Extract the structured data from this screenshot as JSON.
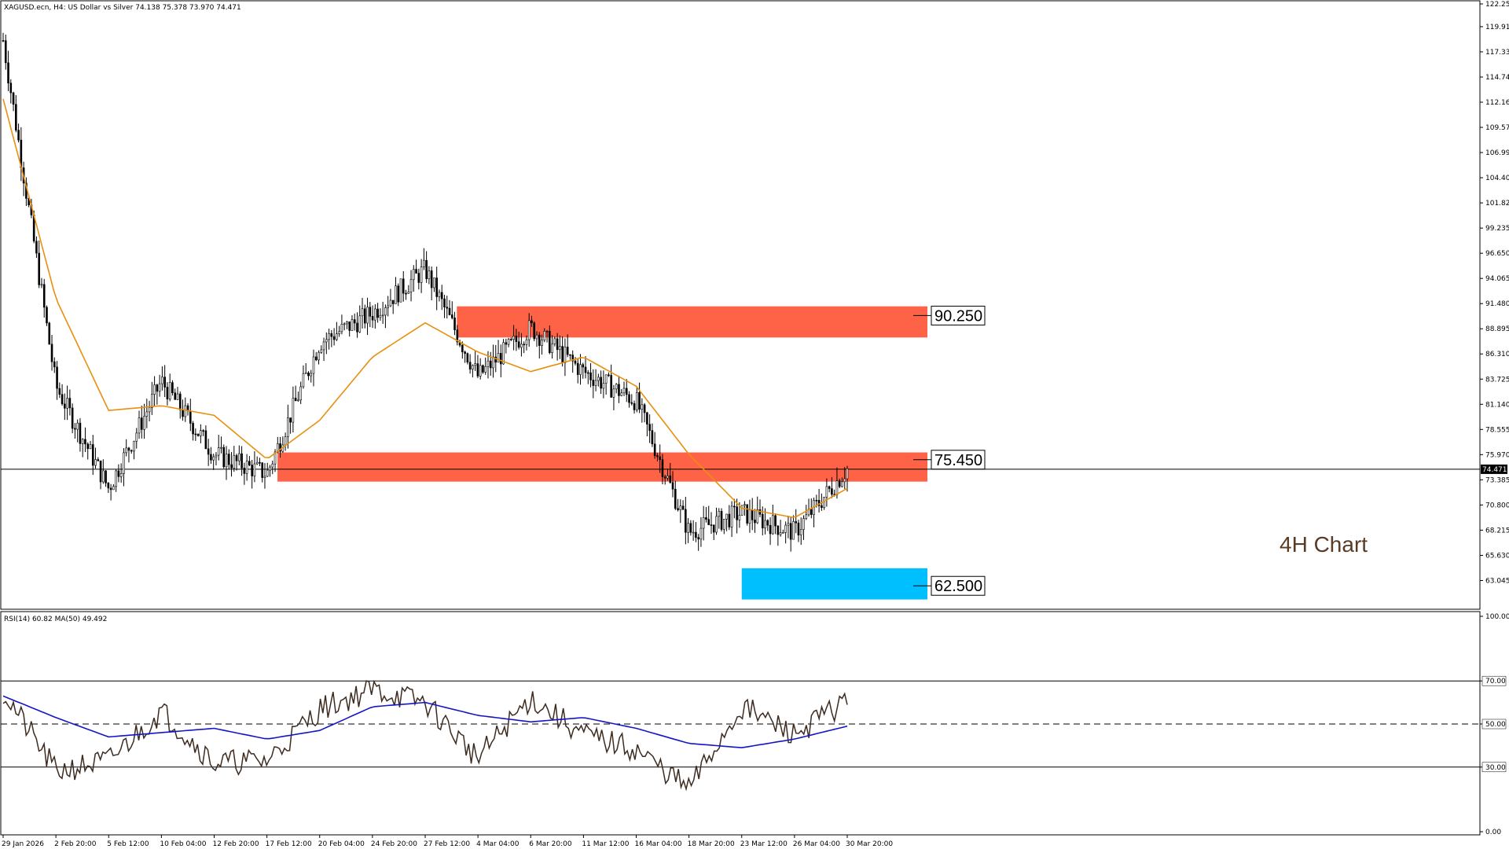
{
  "header": {
    "symbol_line": "XAGUSD.ecn, H4:  US Dollar vs Silver  74.138 75.378 73.970 74.471"
  },
  "annotation": "4H Chart",
  "chart_data": [
    {
      "type": "line",
      "title": "",
      "ylim": [
        60.5,
        122.25
      ],
      "y_ticks": [
        "122.250",
        "119.915",
        "117.330",
        "114.745",
        "112.160",
        "109.575",
        "106.990",
        "104.405",
        "101.820",
        "99.235",
        "96.650",
        "94.065",
        "91.480",
        "88.895",
        "86.310",
        "83.725",
        "81.140",
        "78.555",
        "75.970",
        "73.385",
        "70.800",
        "68.215",
        "65.630",
        "63.045"
      ],
      "x_tick_labels": [
        "29 Jan 2026",
        "2 Feb 20:00",
        "5 Feb 12:00",
        "10 Feb 04:00",
        "12 Feb 20:00",
        "17 Feb 12:00",
        "20 Feb 04:00",
        "24 Feb 20:00",
        "27 Feb 12:00",
        "4 Mar 04:00",
        "6 Mar 20:00",
        "11 Mar 12:00",
        "16 Mar 04:00",
        "18 Mar 20:00",
        "23 Mar 12:00",
        "26 Mar 04:00",
        "30 Mar 20:00"
      ],
      "current_price": "74.471",
      "series": [
        {
          "role": "price",
          "color": "#000000",
          "x": [
            "29 Jan 2026",
            "2 Feb 20:00",
            "5 Feb 12:00",
            "10 Feb 04:00",
            "12 Feb 20:00",
            "17 Feb 12:00",
            "20 Feb 04:00",
            "24 Feb 20:00",
            "27 Feb 12:00",
            "4 Mar 04:00",
            "6 Mar 20:00",
            "11 Mar 12:00",
            "16 Mar 04:00",
            "18 Mar 20:00",
            "23 Mar 12:00",
            "26 Mar 04:00",
            "30 Mar 20:00"
          ],
          "values": [
            118.5,
            83.0,
            72.5,
            83.5,
            76.0,
            74.0,
            87.5,
            90.5,
            95.0,
            84.0,
            89.0,
            84.5,
            81.5,
            68.0,
            70.0,
            68.0,
            74.5
          ]
        },
        {
          "role": "moving-average",
          "color": "#e8900e",
          "x": [
            "29 Jan 2026",
            "2 Feb 20:00",
            "5 Feb 12:00",
            "10 Feb 04:00",
            "12 Feb 20:00",
            "17 Feb 12:00",
            "20 Feb 04:00",
            "24 Feb 20:00",
            "27 Feb 12:00",
            "4 Mar 04:00",
            "6 Mar 20:00",
            "11 Mar 12:00",
            "16 Mar 04:00",
            "18 Mar 20:00",
            "23 Mar 12:00",
            "26 Mar 04:00",
            "30 Mar 20:00"
          ],
          "values": [
            112.5,
            92.0,
            80.5,
            81.0,
            80.0,
            75.5,
            79.5,
            86.0,
            89.5,
            86.5,
            84.5,
            86.0,
            83.0,
            76.0,
            70.5,
            69.5,
            72.5
          ]
        }
      ],
      "zones": [
        {
          "label": "90.250",
          "from": 88.0,
          "to": 91.2,
          "color": "#ff6347",
          "start_index": 8.6
        },
        {
          "label": "75.450",
          "from": 73.2,
          "to": 76.2,
          "color": "#ff6347",
          "start_index": 5.2
        },
        {
          "label": "62.500",
          "from": 61.1,
          "to": 64.3,
          "color": "#00bfff",
          "start_index": 14.0
        }
      ]
    },
    {
      "type": "line",
      "title": "",
      "legend_text": "RSI(14) 60.82 MA(50) 49.492",
      "ylim": [
        0,
        100
      ],
      "y_ticks": [
        "100.00",
        "70.00",
        "50.00",
        "30.00",
        "0.00"
      ],
      "levels": [
        70,
        50,
        30
      ],
      "series": [
        {
          "role": "rsi",
          "color": "#3d2b1f",
          "x": [
            "29 Jan 2026",
            "2 Feb 20:00",
            "5 Feb 12:00",
            "10 Feb 04:00",
            "12 Feb 20:00",
            "17 Feb 12:00",
            "20 Feb 04:00",
            "24 Feb 20:00",
            "27 Feb 12:00",
            "4 Mar 04:00",
            "6 Mar 20:00",
            "11 Mar 12:00",
            "16 Mar 04:00",
            "18 Mar 20:00",
            "23 Mar 12:00",
            "26 Mar 04:00",
            "30 Mar 20:00"
          ],
          "values": [
            65,
            28,
            33,
            56,
            32,
            33,
            57,
            66,
            60,
            34,
            62,
            45,
            38,
            20,
            58,
            45,
            61
          ]
        },
        {
          "role": "rsi-ma",
          "color": "#1515c8",
          "x": [
            "29 Jan 2026",
            "2 Feb 20:00",
            "5 Feb 12:00",
            "10 Feb 04:00",
            "12 Feb 20:00",
            "17 Feb 12:00",
            "20 Feb 04:00",
            "24 Feb 20:00",
            "27 Feb 12:00",
            "4 Mar 04:00",
            "6 Mar 20:00",
            "11 Mar 12:00",
            "16 Mar 04:00",
            "18 Mar 20:00",
            "23 Mar 12:00",
            "26 Mar 04:00",
            "30 Mar 20:00"
          ],
          "values": [
            63,
            53,
            44,
            46,
            48,
            43,
            47,
            58,
            60,
            54,
            51,
            53,
            48,
            41,
            39,
            43,
            49
          ]
        }
      ]
    }
  ]
}
